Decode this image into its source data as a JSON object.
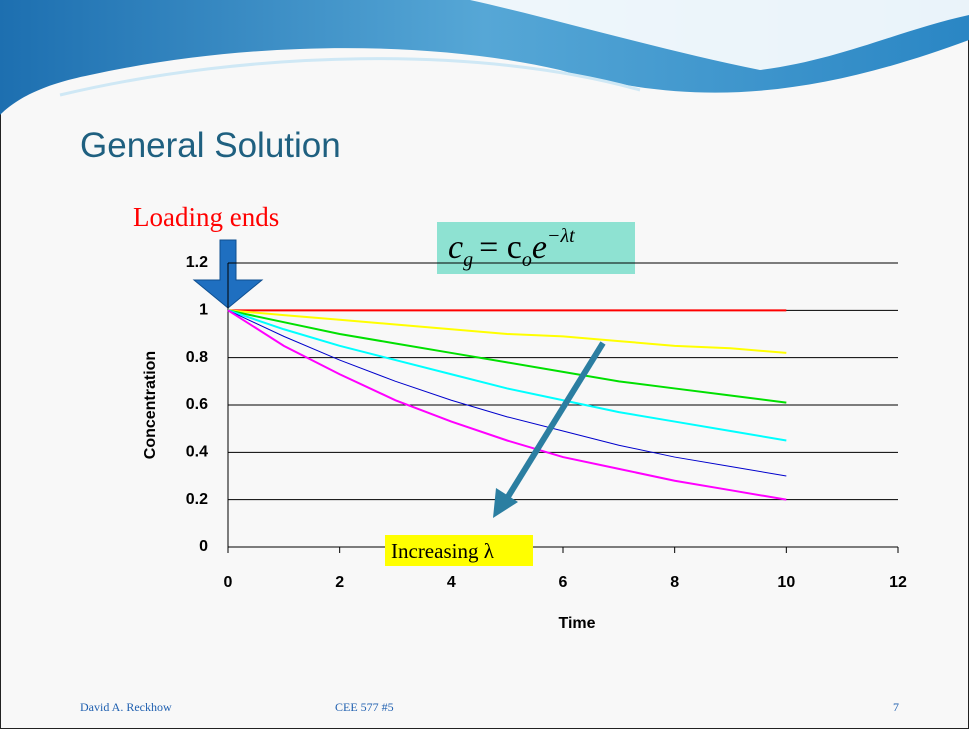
{
  "slide": {
    "title": "General Solution",
    "footer_author": "David A. Reckhow",
    "footer_course": "CEE 577  #5",
    "page_number": "7"
  },
  "chart_data": {
    "type": "line",
    "x_label": "Time",
    "y_label": "Concentration",
    "annotations": {
      "loading": "Loading ends",
      "eq_c": "c",
      "eq_g": "g",
      "eq_eq": "= c",
      "eq_o": "o",
      "eq_e": "e",
      "eq_exp": "−λt",
      "increasing": "Increasing λ"
    },
    "x": [
      0,
      1,
      2,
      3,
      4,
      5,
      6,
      7,
      8,
      9,
      10
    ],
    "series": [
      {
        "color": "#ff0000",
        "values": [
          1,
          1,
          1,
          1,
          1,
          1,
          1,
          1,
          1,
          1,
          1
        ]
      },
      {
        "color": "#ffff00",
        "values": [
          1,
          0.98,
          0.96,
          0.94,
          0.92,
          0.9,
          0.89,
          0.87,
          0.85,
          0.84,
          0.82
        ]
      },
      {
        "color": "#00e000",
        "values": [
          1,
          0.95,
          0.9,
          0.86,
          0.82,
          0.78,
          0.74,
          0.7,
          0.67,
          0.64,
          0.61
        ]
      },
      {
        "color": "#00ffff",
        "values": [
          1,
          0.92,
          0.85,
          0.79,
          0.73,
          0.67,
          0.62,
          0.57,
          0.53,
          0.49,
          0.45
        ]
      },
      {
        "color": "#0000cc",
        "values": [
          1,
          0.89,
          0.79,
          0.7,
          0.62,
          0.55,
          0.49,
          0.43,
          0.38,
          0.34,
          0.3
        ]
      },
      {
        "color": "#ff00ff",
        "values": [
          1,
          0.85,
          0.73,
          0.62,
          0.53,
          0.45,
          0.38,
          0.33,
          0.28,
          0.24,
          0.2
        ]
      }
    ],
    "xlim": [
      0,
      12
    ],
    "xticks": [
      0,
      2,
      4,
      6,
      8,
      10,
      12
    ],
    "ylim": [
      0,
      1.2
    ],
    "yticks": [
      0,
      0.2,
      0.4,
      0.6,
      0.8,
      1,
      1.2
    ],
    "grid": true
  }
}
